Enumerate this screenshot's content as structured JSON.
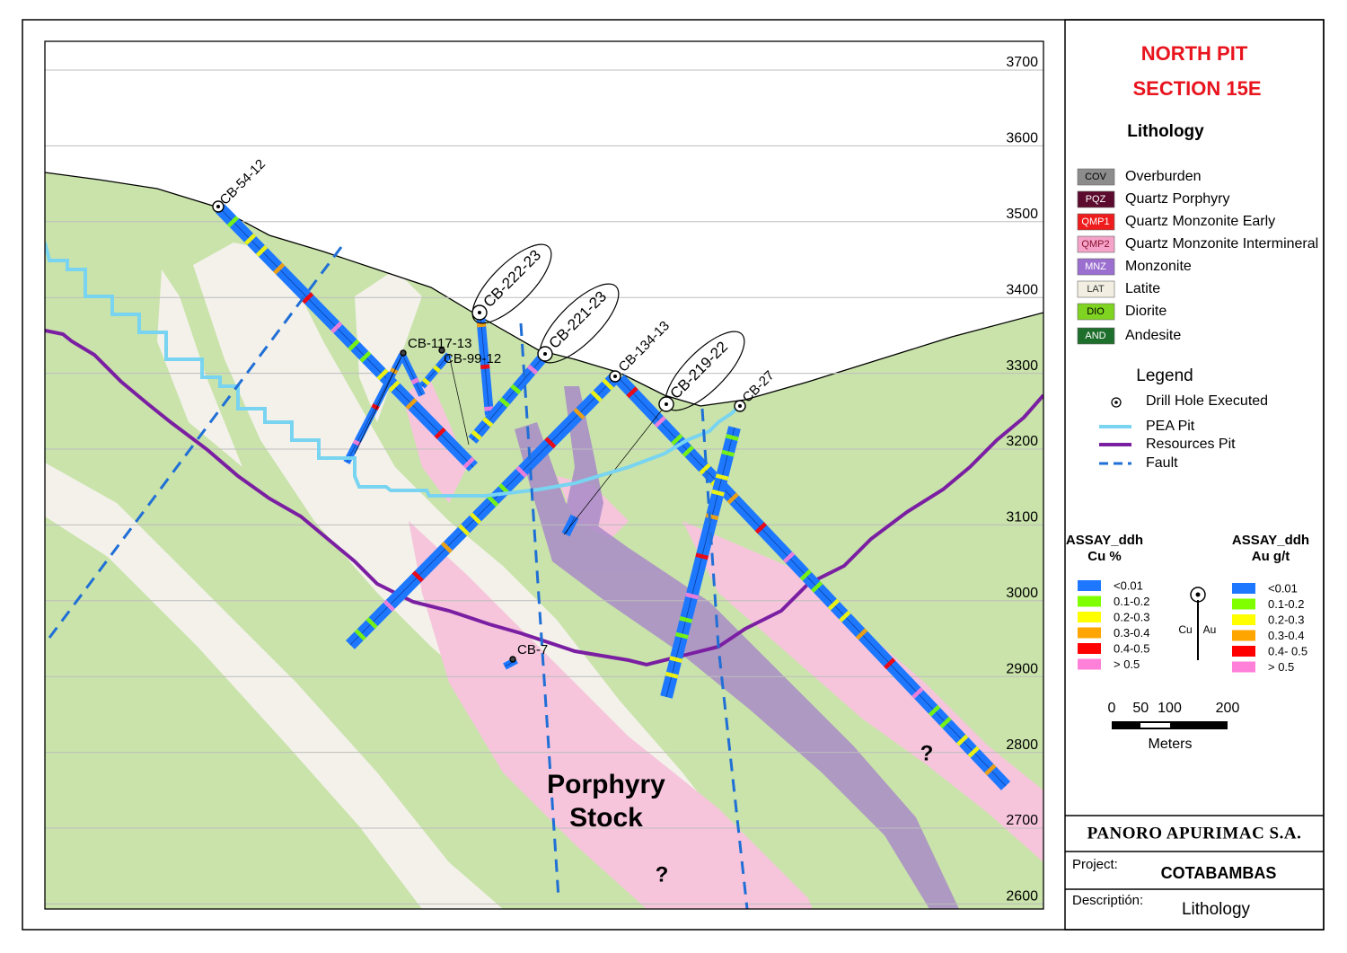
{
  "title": [
    "NORTH PIT",
    "SECTION 15E"
  ],
  "lithology": {
    "heading": "Lithology",
    "items": [
      {
        "code": "COV",
        "name": "Overburden",
        "color": "#8c8c8c"
      },
      {
        "code": "PQZ",
        "name": "Quartz Porphyry",
        "color": "#5c0a2e"
      },
      {
        "code": "QMP1",
        "name": "Quartz Monzonite Early",
        "color": "#ee1c1c"
      },
      {
        "code": "QMP2",
        "name": "Quartz Monzonite Intermineral",
        "color": "#f5a3c8"
      },
      {
        "code": "MNZ",
        "name": "Monzonite",
        "color": "#9b6fd0"
      },
      {
        "code": "LAT",
        "name": "Latite",
        "color": "#f2efe2"
      },
      {
        "code": "DIO",
        "name": "Diorite",
        "color": "#7fd321"
      },
      {
        "code": "AND",
        "name": "Andesite",
        "color": "#1e6e2c"
      }
    ]
  },
  "legend": {
    "heading": "Legend",
    "items": [
      "Drill Hole Executed",
      "PEA Pit",
      "Resources Pit",
      "Fault"
    ]
  },
  "assay_cu": {
    "title": [
      "ASSAY_ddh",
      "Cu %"
    ],
    "items": [
      {
        "label": "<0.01",
        "color": "#1e78ff"
      },
      {
        "label": "0.1-0.2",
        "color": "#80ff00"
      },
      {
        "label": "0.2-0.3",
        "color": "#ffff00"
      },
      {
        "label": "0.3-0.4",
        "color": "#ffa500"
      },
      {
        "label": "0.4-0.5",
        "color": "#ff0000"
      },
      {
        "label": "> 0.5",
        "color": "#ff80d8"
      }
    ]
  },
  "assay_au": {
    "title": [
      "ASSAY_ddh",
      "Au g/t"
    ],
    "items": [
      {
        "label": "<0.01",
        "color": "#1e78ff"
      },
      {
        "label": "0.1-0.2",
        "color": "#80ff00"
      },
      {
        "label": "0.2-0.3",
        "color": "#ffff00"
      },
      {
        "label": "0.3-0.4",
        "color": "#ffa500"
      },
      {
        "label": "0.4- 0.5",
        "color": "#ff0000"
      },
      {
        "label": "> 0.5",
        "color": "#ff80d8"
      }
    ]
  },
  "symbol_labels": [
    "Cu",
    "Au"
  ],
  "scale": {
    "ticks": [
      0,
      50,
      100,
      200
    ],
    "unit": "Meters"
  },
  "title_block": {
    "company": "PANORO APURIMAC S.A.",
    "project_label": "Project:",
    "project": "COTABAMBAS",
    "description_label": "Descriptión:",
    "description": "Lithology"
  },
  "section": {
    "elevations": [
      3700,
      3600,
      3500,
      3400,
      3300,
      3200,
      3100,
      3000,
      2900,
      2800,
      2700,
      2600
    ],
    "drill_holes": [
      "CB-54-12",
      "CB-222-23",
      "CB-221-23",
      "CB-134-13",
      "CB-219-22",
      "CB-27",
      "CB-117-13",
      "CB-99-12",
      "CB-7"
    ],
    "annotations": [
      "Porphyry",
      "Stock",
      "?",
      "?"
    ]
  }
}
